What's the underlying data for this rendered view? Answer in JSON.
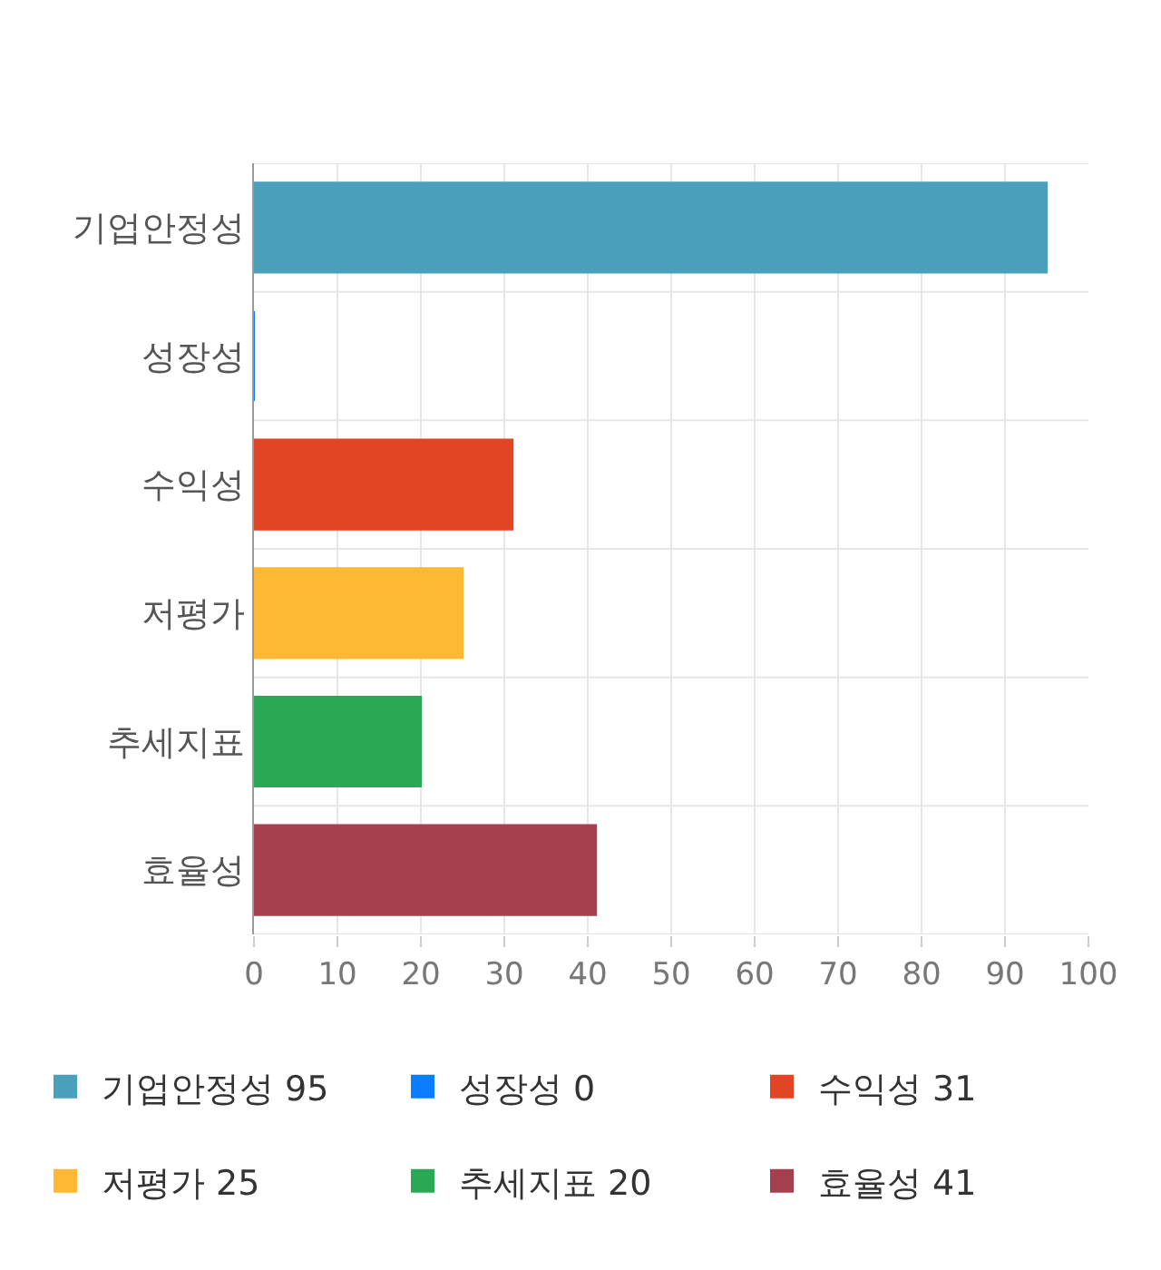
{
  "chart_data": {
    "type": "bar",
    "orientation": "horizontal",
    "stacked": true,
    "categories": [
      "기업안정성",
      "성장성",
      "수익성",
      "저평가",
      "추세지표",
      "효율성"
    ],
    "series": [
      {
        "name": "기업안정성 95",
        "color": "#4aa0ba",
        "values": [
          95,
          null,
          null,
          null,
          null,
          null
        ]
      },
      {
        "name": "성장성 0",
        "color": "#0a7cff",
        "values": [
          null,
          0,
          null,
          null,
          null,
          null
        ]
      },
      {
        "name": "수익성 31",
        "color": "#e24525",
        "values": [
          null,
          null,
          31,
          null,
          null,
          null
        ]
      },
      {
        "name": "저평가 25",
        "color": "#ffb833",
        "values": [
          null,
          null,
          null,
          25,
          null,
          null
        ]
      },
      {
        "name": "추세지표 20",
        "color": "#29a956",
        "values": [
          null,
          null,
          null,
          null,
          20,
          null
        ]
      },
      {
        "name": "효율성 41",
        "color": "#a5404f",
        "values": [
          null,
          null,
          null,
          null,
          null,
          41
        ]
      }
    ],
    "xlim": [
      0,
      100
    ],
    "xticks": [
      0,
      10,
      20,
      30,
      40,
      50,
      60,
      70,
      80,
      90,
      100
    ],
    "grid": true,
    "legend": "bottom"
  }
}
